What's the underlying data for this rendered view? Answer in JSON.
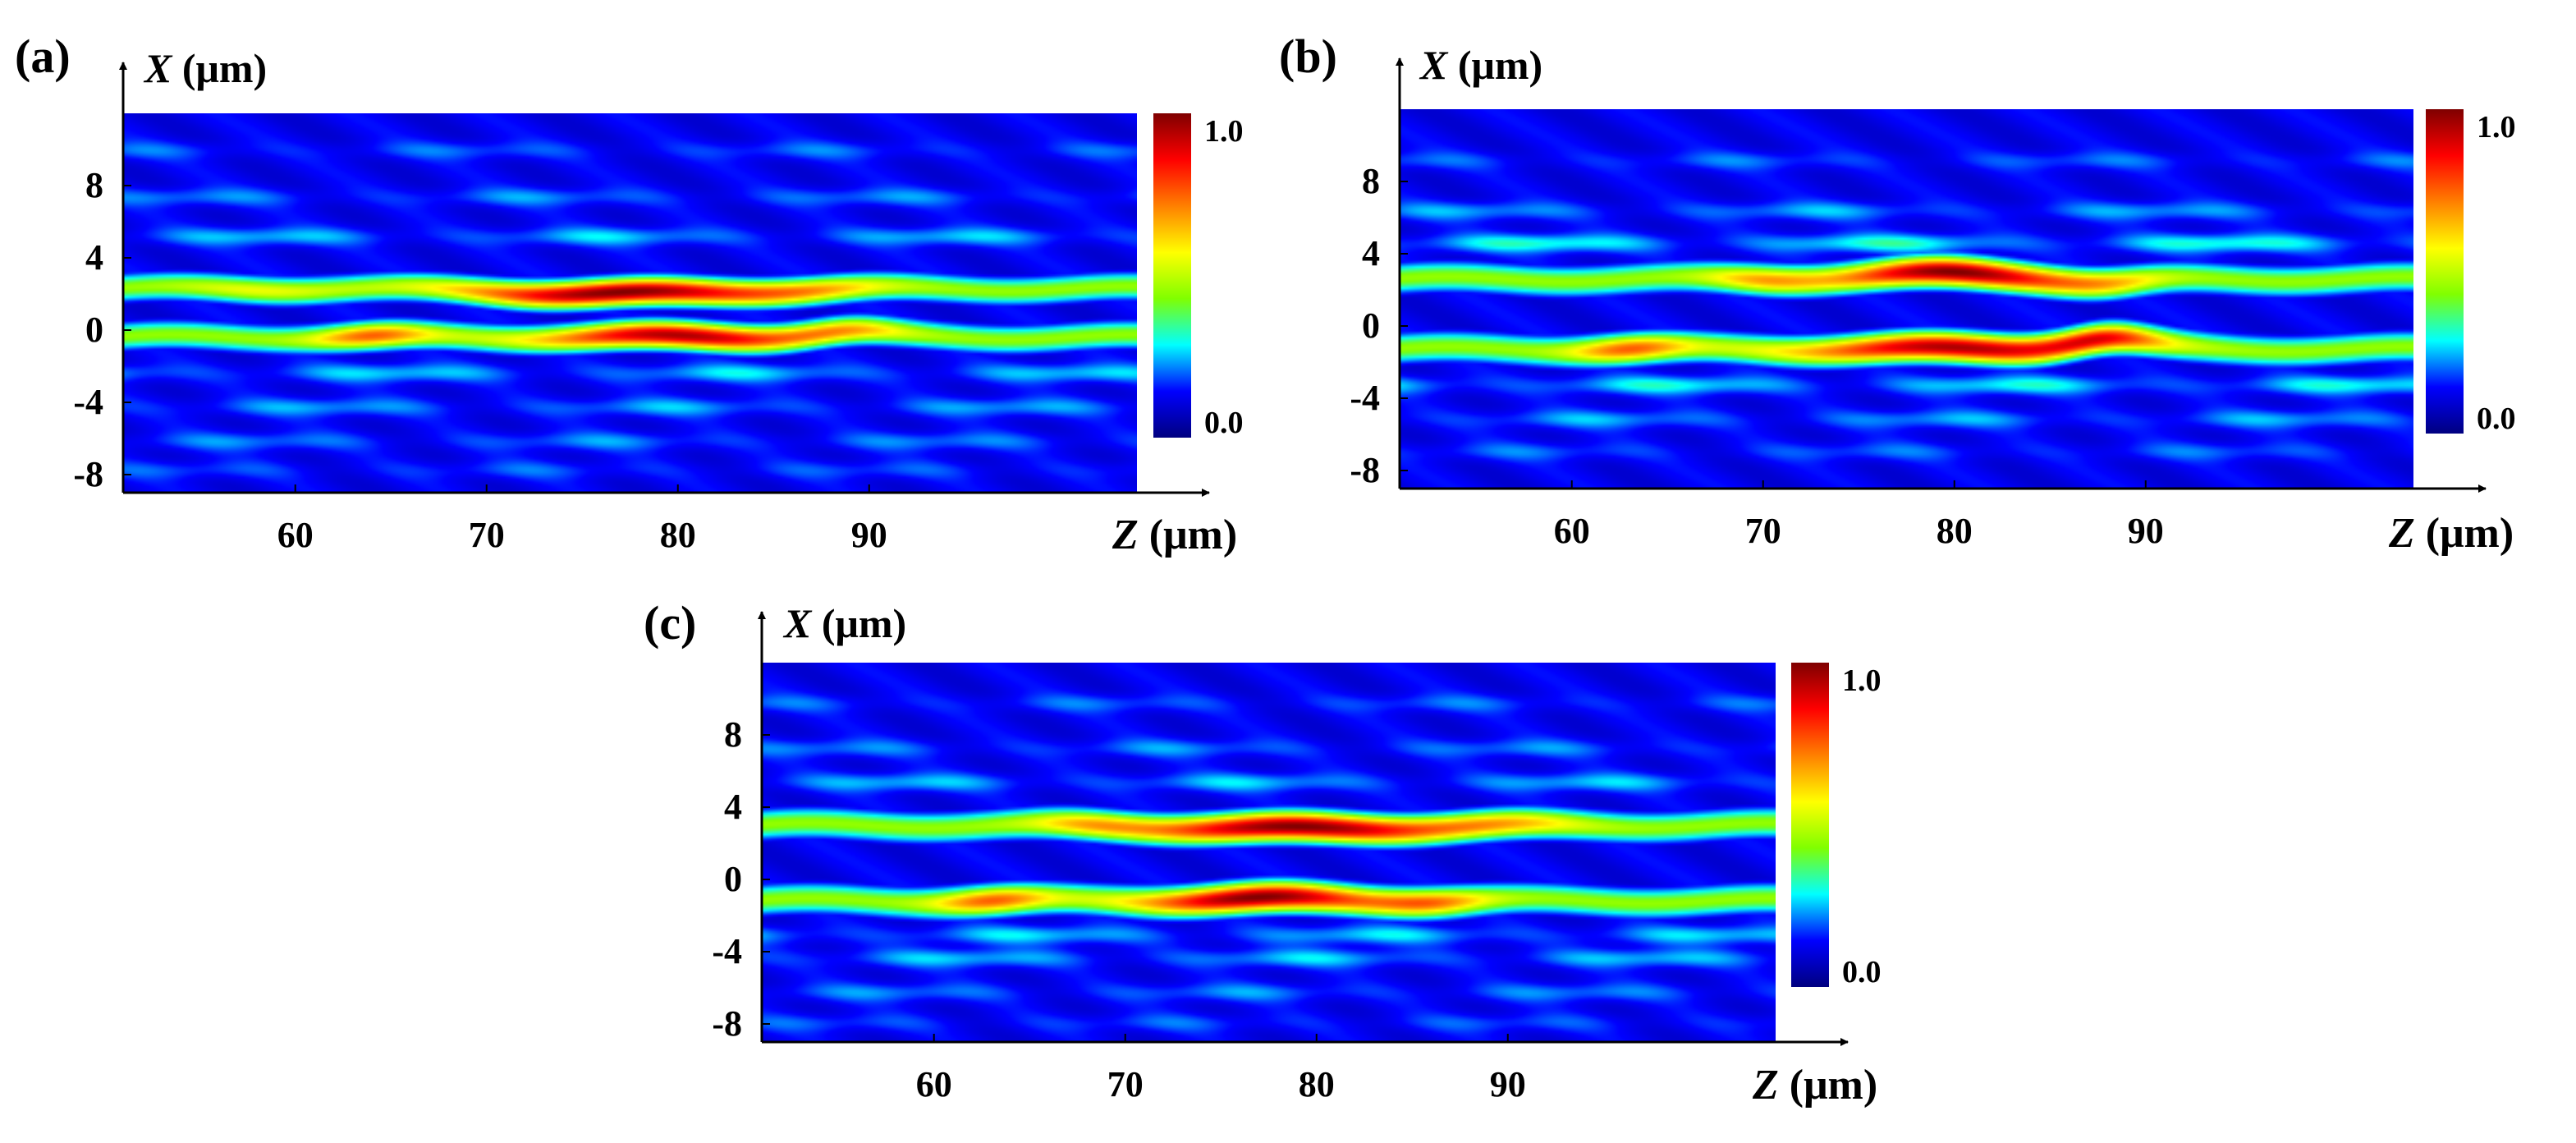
{
  "colorscale": {
    "stops": [
      "#00007f",
      "#0000ff",
      "#00ffff",
      "#80ff00",
      "#ffff00",
      "#ff8000",
      "#ff0000",
      "#7f0000"
    ],
    "background": "#0a14b4"
  },
  "chart_data": [
    {
      "type": "heatmap",
      "panel_label": "(a)",
      "x_axis": {
        "letter": "Z",
        "unit": "(μm)",
        "ticks": [
          60,
          70,
          80,
          90
        ],
        "range": [
          51,
          104
        ]
      },
      "y_axis": {
        "letter": "X",
        "unit": "(μm)",
        "ticks": [
          8,
          4,
          0,
          -4,
          -8
        ],
        "range": [
          -9,
          12
        ]
      },
      "colorbar": {
        "min_label": "0.0",
        "max_label": "1.0",
        "range": [
          0,
          1
        ]
      },
      "beams": [
        {
          "center_x": 2.3,
          "width": 0.55,
          "base": 0.45,
          "hotspots": [
            {
              "z": 77,
              "spread": 8,
              "amp": 0.55,
              "shift": -0.3
            },
            {
              "z": 87,
              "spread": 4,
              "amp": 0.15,
              "shift": 0
            },
            {
              "z": 58,
              "spread": 4,
              "amp": 0.1,
              "shift": 0
            }
          ]
        },
        {
          "center_x": -0.4,
          "width": 0.55,
          "base": 0.45,
          "hotspots": [
            {
              "z": 80,
              "spread": 7,
              "amp": 0.5,
              "shift": 0
            },
            {
              "z": 64,
              "spread": 3,
              "amp": 0.3,
              "shift": 0
            },
            {
              "z": 89,
              "spread": 3,
              "amp": 0.15,
              "shift": 0.3
            }
          ]
        }
      ],
      "fringes": [
        {
          "x": 5.2,
          "amp": 0.14
        },
        {
          "x": 7.4,
          "amp": 0.1
        },
        {
          "x": 10.0,
          "amp": 0.08
        },
        {
          "x": -2.4,
          "amp": 0.15
        },
        {
          "x": -4.3,
          "amp": 0.12
        },
        {
          "x": -6.2,
          "amp": 0.1
        },
        {
          "x": -7.8,
          "amp": 0.07
        }
      ]
    },
    {
      "type": "heatmap",
      "panel_label": "(b)",
      "x_axis": {
        "letter": "Z",
        "unit": "(μm)",
        "ticks": [
          60,
          70,
          80,
          90
        ],
        "range": [
          51,
          104
        ]
      },
      "y_axis": {
        "letter": "X",
        "unit": "(μm)",
        "ticks": [
          8,
          4,
          0,
          -4,
          -8
        ],
        "range": [
          -9,
          12
        ]
      },
      "colorbar": {
        "min_label": "0.0",
        "max_label": "1.0",
        "range": [
          0,
          1
        ]
      },
      "beams": [
        {
          "center_x": 2.6,
          "width": 0.6,
          "base": 0.45,
          "hotspots": [
            {
              "z": 80,
              "spread": 6,
              "amp": 0.55,
              "shift": 0.3
            },
            {
              "z": 70,
              "spread": 3,
              "amp": 0.2,
              "shift": 0
            },
            {
              "z": 88,
              "spread": 3,
              "amp": 0.15,
              "shift": -0.3
            }
          ]
        },
        {
          "center_x": -1.3,
          "width": 0.6,
          "base": 0.45,
          "hotspots": [
            {
              "z": 80,
              "spread": 8,
              "amp": 0.5,
              "shift": 0
            },
            {
              "z": 63,
              "spread": 3,
              "amp": 0.3,
              "shift": 0
            },
            {
              "z": 88,
              "spread": 3,
              "amp": 0.25,
              "shift": 0.6
            }
          ]
        }
      ],
      "fringes": [
        {
          "x": 4.6,
          "amp": 0.2
        },
        {
          "x": 6.4,
          "amp": 0.12
        },
        {
          "x": 9.2,
          "amp": 0.08
        },
        {
          "x": -3.3,
          "amp": 0.18
        },
        {
          "x": -5.2,
          "amp": 0.12
        },
        {
          "x": -7.0,
          "amp": 0.08
        }
      ]
    },
    {
      "type": "heatmap",
      "panel_label": "(c)",
      "x_axis": {
        "letter": "Z",
        "unit": "(μm)",
        "ticks": [
          60,
          70,
          80,
          90
        ],
        "range": [
          51,
          104
        ]
      },
      "y_axis": {
        "letter": "X",
        "unit": "(μm)",
        "ticks": [
          8,
          4,
          0,
          -4,
          -8
        ],
        "range": [
          -9,
          12
        ]
      },
      "colorbar": {
        "min_label": "0.0",
        "max_label": "1.0",
        "range": [
          0,
          1
        ]
      },
      "beams": [
        {
          "center_x": 3.0,
          "width": 0.6,
          "base": 0.45,
          "hotspots": [
            {
              "z": 79,
              "spread": 8,
              "amp": 0.55,
              "shift": -0.2
            },
            {
              "z": 68,
              "spread": 3,
              "amp": 0.15,
              "shift": 0
            },
            {
              "z": 90,
              "spread": 4,
              "amp": 0.15,
              "shift": 0
            }
          ]
        },
        {
          "center_x": -1.2,
          "width": 0.6,
          "base": 0.45,
          "hotspots": [
            {
              "z": 77,
              "spread": 6,
              "amp": 0.55,
              "shift": 0.1
            },
            {
              "z": 63,
              "spread": 3,
              "amp": 0.3,
              "shift": 0
            },
            {
              "z": 86,
              "spread": 3,
              "amp": 0.25,
              "shift": 0
            }
          ]
        }
      ],
      "fringes": [
        {
          "x": 5.4,
          "amp": 0.14
        },
        {
          "x": 7.3,
          "amp": 0.1
        },
        {
          "x": 9.8,
          "amp": 0.08
        },
        {
          "x": -3.1,
          "amp": 0.15
        },
        {
          "x": -4.4,
          "amp": 0.14
        },
        {
          "x": -6.3,
          "amp": 0.1
        },
        {
          "x": -8.0,
          "amp": 0.07
        }
      ]
    }
  ]
}
